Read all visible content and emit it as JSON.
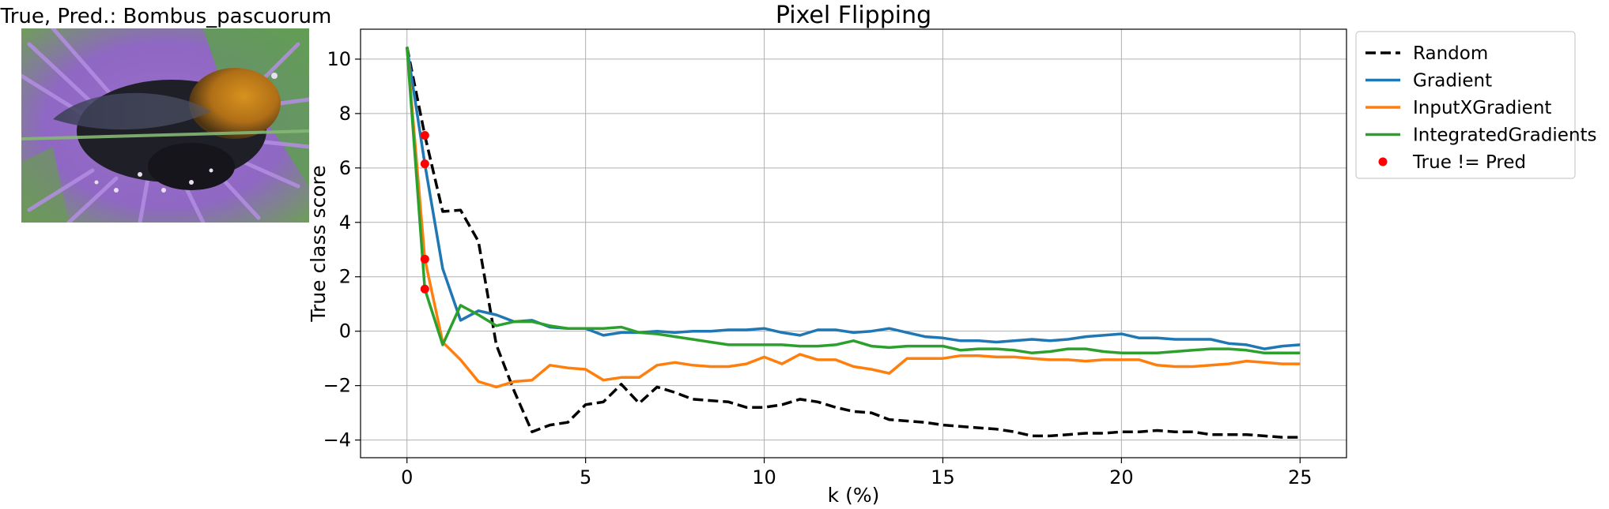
{
  "image_panel": {
    "title": "True, Pred.: Bombus_pascuorum",
    "photo_icon": "bumblebee-on-purple-flower-photo"
  },
  "chart_data": {
    "type": "line",
    "title": "Pixel Flipping",
    "xlabel": "k (%)",
    "ylabel": "True class score",
    "xlim": [
      -1.3,
      26.3
    ],
    "ylim": [
      -4.65,
      11.1
    ],
    "xticks": [
      0,
      5,
      10,
      15,
      20,
      25
    ],
    "yticks": [
      -4,
      -2,
      0,
      2,
      4,
      6,
      8,
      10
    ],
    "grid": true,
    "legend_position": "outside-top-right",
    "x": [
      0,
      0.5,
      1,
      1.5,
      2,
      2.5,
      3,
      3.5,
      4,
      4.5,
      5,
      5.5,
      6,
      6.5,
      7,
      7.5,
      8,
      8.5,
      9,
      9.5,
      10,
      10.5,
      11,
      11.5,
      12,
      12.5,
      13,
      13.5,
      14,
      14.5,
      15,
      15.5,
      16,
      16.5,
      17,
      17.5,
      18,
      18.5,
      19,
      19.5,
      20,
      20.5,
      21,
      21.5,
      22,
      22.5,
      23,
      23.5,
      24,
      24.5,
      25
    ],
    "series": [
      {
        "name": "Random",
        "color": "#000000",
        "dash": true,
        "values": [
          10.45,
          7.2,
          4.4,
          4.45,
          3.3,
          -0.5,
          -2.2,
          -3.7,
          -3.45,
          -3.35,
          -2.7,
          -2.6,
          -1.95,
          -2.65,
          -2.05,
          -2.25,
          -2.5,
          -2.55,
          -2.6,
          -2.8,
          -2.8,
          -2.7,
          -2.5,
          -2.6,
          -2.8,
          -2.95,
          -3.0,
          -3.25,
          -3.3,
          -3.35,
          -3.45,
          -3.5,
          -3.55,
          -3.6,
          -3.7,
          -3.85,
          -3.85,
          -3.8,
          -3.75,
          -3.75,
          -3.7,
          -3.7,
          -3.65,
          -3.7,
          -3.7,
          -3.8,
          -3.8,
          -3.8,
          -3.85,
          -3.9,
          -3.9
        ]
      },
      {
        "name": "Gradient",
        "color": "#1f77b4",
        "dash": false,
        "values": [
          10.45,
          6.15,
          2.3,
          0.4,
          0.75,
          0.6,
          0.35,
          0.4,
          0.15,
          0.1,
          0.1,
          -0.15,
          -0.05,
          -0.05,
          0.0,
          -0.05,
          0.0,
          0.0,
          0.05,
          0.05,
          0.1,
          -0.05,
          -0.15,
          0.05,
          0.05,
          -0.05,
          0.0,
          0.1,
          -0.05,
          -0.2,
          -0.25,
          -0.35,
          -0.35,
          -0.4,
          -0.35,
          -0.3,
          -0.35,
          -0.3,
          -0.2,
          -0.15,
          -0.1,
          -0.25,
          -0.25,
          -0.3,
          -0.3,
          -0.3,
          -0.45,
          -0.5,
          -0.65,
          -0.55,
          -0.5
        ]
      },
      {
        "name": "InputXGradient",
        "color": "#ff7f0e",
        "dash": false,
        "values": [
          10.45,
          2.65,
          -0.4,
          -1.05,
          -1.85,
          -2.05,
          -1.85,
          -1.8,
          -1.25,
          -1.35,
          -1.4,
          -1.8,
          -1.7,
          -1.7,
          -1.25,
          -1.15,
          -1.25,
          -1.3,
          -1.3,
          -1.2,
          -0.95,
          -1.2,
          -0.85,
          -1.05,
          -1.05,
          -1.3,
          -1.4,
          -1.55,
          -1.0,
          -1.0,
          -1.0,
          -0.9,
          -0.9,
          -0.95,
          -0.95,
          -1.0,
          -1.05,
          -1.05,
          -1.1,
          -1.05,
          -1.05,
          -1.05,
          -1.25,
          -1.3,
          -1.3,
          -1.25,
          -1.2,
          -1.1,
          -1.15,
          -1.2,
          -1.2
        ]
      },
      {
        "name": "IntegratedGradients",
        "color": "#2ca02c",
        "dash": false,
        "values": [
          10.45,
          1.55,
          -0.5,
          0.95,
          0.6,
          0.2,
          0.35,
          0.35,
          0.2,
          0.1,
          0.1,
          0.1,
          0.15,
          -0.05,
          -0.1,
          -0.2,
          -0.3,
          -0.4,
          -0.5,
          -0.5,
          -0.5,
          -0.5,
          -0.55,
          -0.55,
          -0.5,
          -0.35,
          -0.55,
          -0.6,
          -0.55,
          -0.55,
          -0.55,
          -0.7,
          -0.65,
          -0.65,
          -0.7,
          -0.8,
          -0.75,
          -0.65,
          -0.65,
          -0.75,
          -0.8,
          -0.8,
          -0.8,
          -0.75,
          -0.7,
          -0.65,
          -0.65,
          -0.7,
          -0.8,
          -0.8,
          -0.8
        ]
      },
      {
        "name": "True != Pred",
        "color": "#ff0000",
        "type": "scatter",
        "points": [
          [
            0.5,
            7.2
          ],
          [
            0.5,
            6.15
          ],
          [
            0.5,
            2.65
          ],
          [
            0.5,
            1.55
          ]
        ]
      }
    ]
  }
}
